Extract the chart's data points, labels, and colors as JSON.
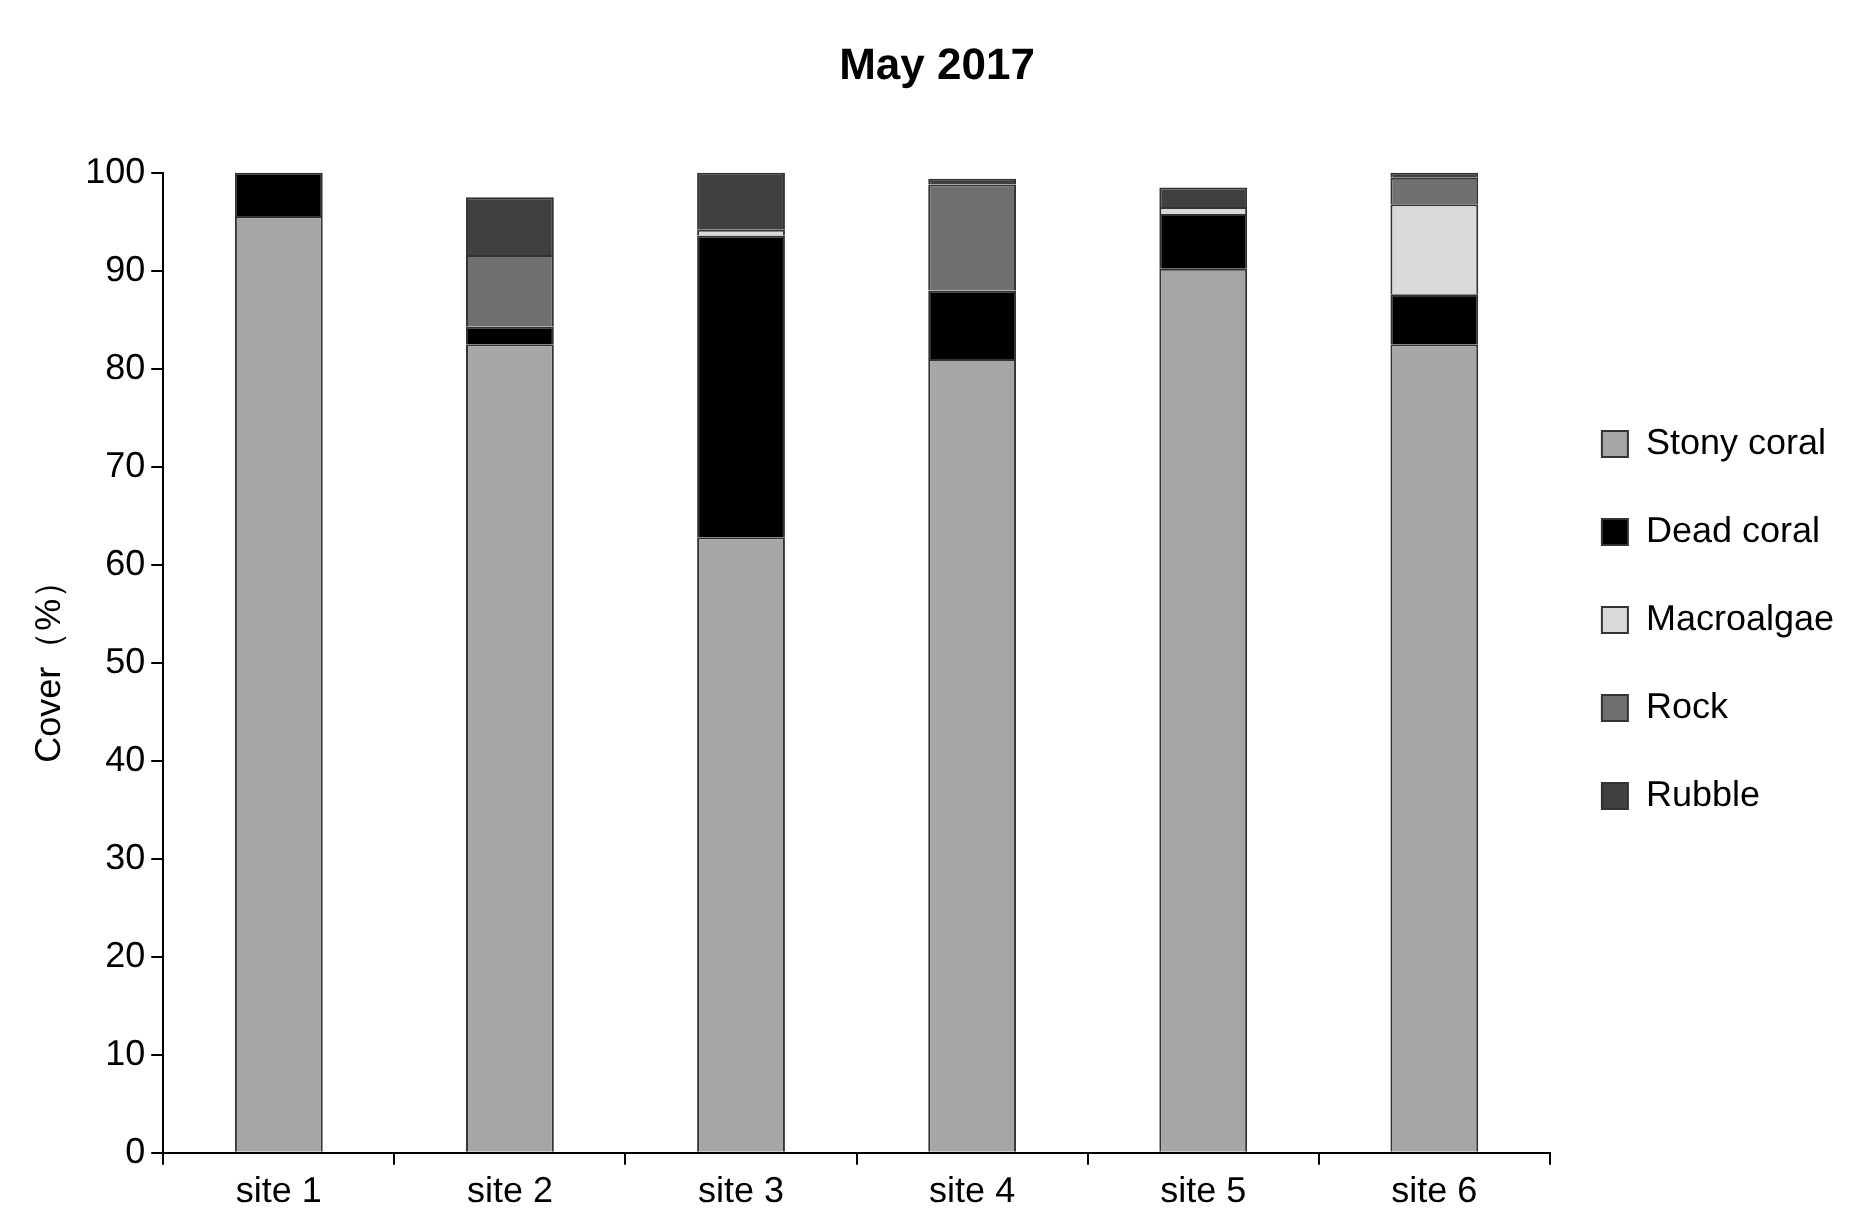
{
  "chart_data": {
    "type": "bar",
    "title": "May 2017",
    "ylabel": "Cover（%）",
    "stacked": true,
    "grid": false,
    "legend": "right",
    "categories": [
      "site 1",
      "site 2",
      "site 3",
      "site 4",
      "site 5",
      "site 6"
    ],
    "ylim": [
      0,
      100
    ],
    "yticks": [
      0,
      10,
      20,
      30,
      40,
      50,
      60,
      70,
      80,
      90,
      100
    ],
    "series": [
      {
        "name": "Stony coral",
        "color": "#a6a6a6",
        "values": [
          95.6,
          82.5,
          62.8,
          81.0,
          90.2,
          82.5
        ]
      },
      {
        "name": "Dead coral",
        "color": "#000000",
        "values": [
          4.4,
          1.8,
          30.8,
          7.0,
          5.6,
          5.1
        ]
      },
      {
        "name": "Macroalgae",
        "color": "#d9d9d9",
        "values": [
          null,
          null,
          0.6,
          null,
          0.7,
          9.2
        ]
      },
      {
        "name": "Rock",
        "color": "#707070",
        "values": [
          null,
          7.3,
          null,
          10.8,
          null,
          2.7
        ]
      },
      {
        "name": "Rubble",
        "color": "#404040",
        "values": [
          null,
          5.9,
          5.8,
          0.6,
          2.0,
          0.5
        ]
      }
    ]
  }
}
